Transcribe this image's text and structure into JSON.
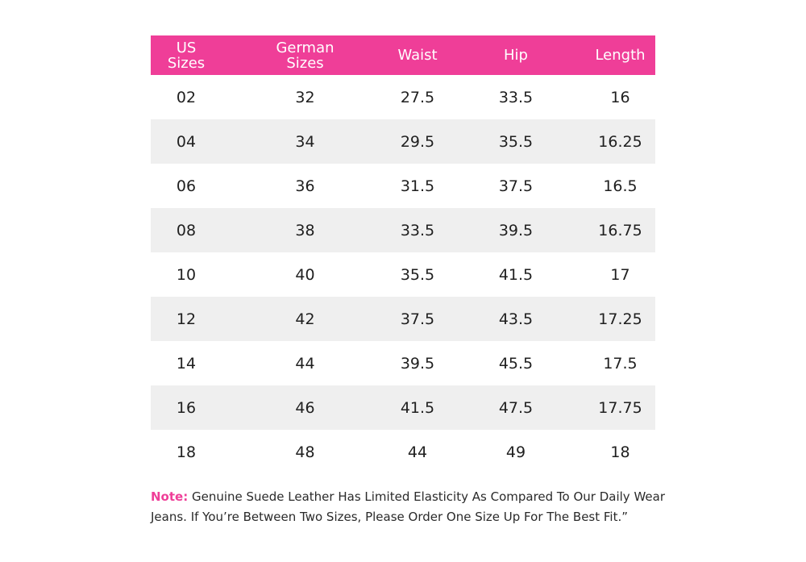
{
  "table": {
    "headers": [
      [
        "US",
        "Sizes"
      ],
      [
        "German",
        "Sizes"
      ],
      [
        "Waist"
      ],
      [
        "Hip"
      ],
      [
        "Length"
      ]
    ],
    "rows": [
      [
        "02",
        "32",
        "27.5",
        "33.5",
        "16"
      ],
      [
        "04",
        "34",
        "29.5",
        "35.5",
        "16.25"
      ],
      [
        "06",
        "36",
        "31.5",
        "37.5",
        "16.5"
      ],
      [
        "08",
        "38",
        "33.5",
        "39.5",
        "16.75"
      ],
      [
        "10",
        "40",
        "35.5",
        "41.5",
        "17"
      ],
      [
        "12",
        "42",
        "37.5",
        "43.5",
        "17.25"
      ],
      [
        "14",
        "44",
        "39.5",
        "45.5",
        "17.5"
      ],
      [
        "16",
        "46",
        "41.5",
        "47.5",
        "17.75"
      ],
      [
        "18",
        "48",
        "44",
        "49",
        "18"
      ]
    ]
  },
  "note": {
    "label": "Note:",
    "text": " Genuine Suede Leather Has Limited Elasticity As Compared To Our Daily Wear Jeans. If You’re Between Two Sizes, Please Order One Size Up For The Best Fit.”"
  },
  "colors": {
    "header_bg": "#ef3e98",
    "header_text": "#ffffff",
    "row_shade": "#efefef",
    "note_label": "#ef3e98"
  }
}
